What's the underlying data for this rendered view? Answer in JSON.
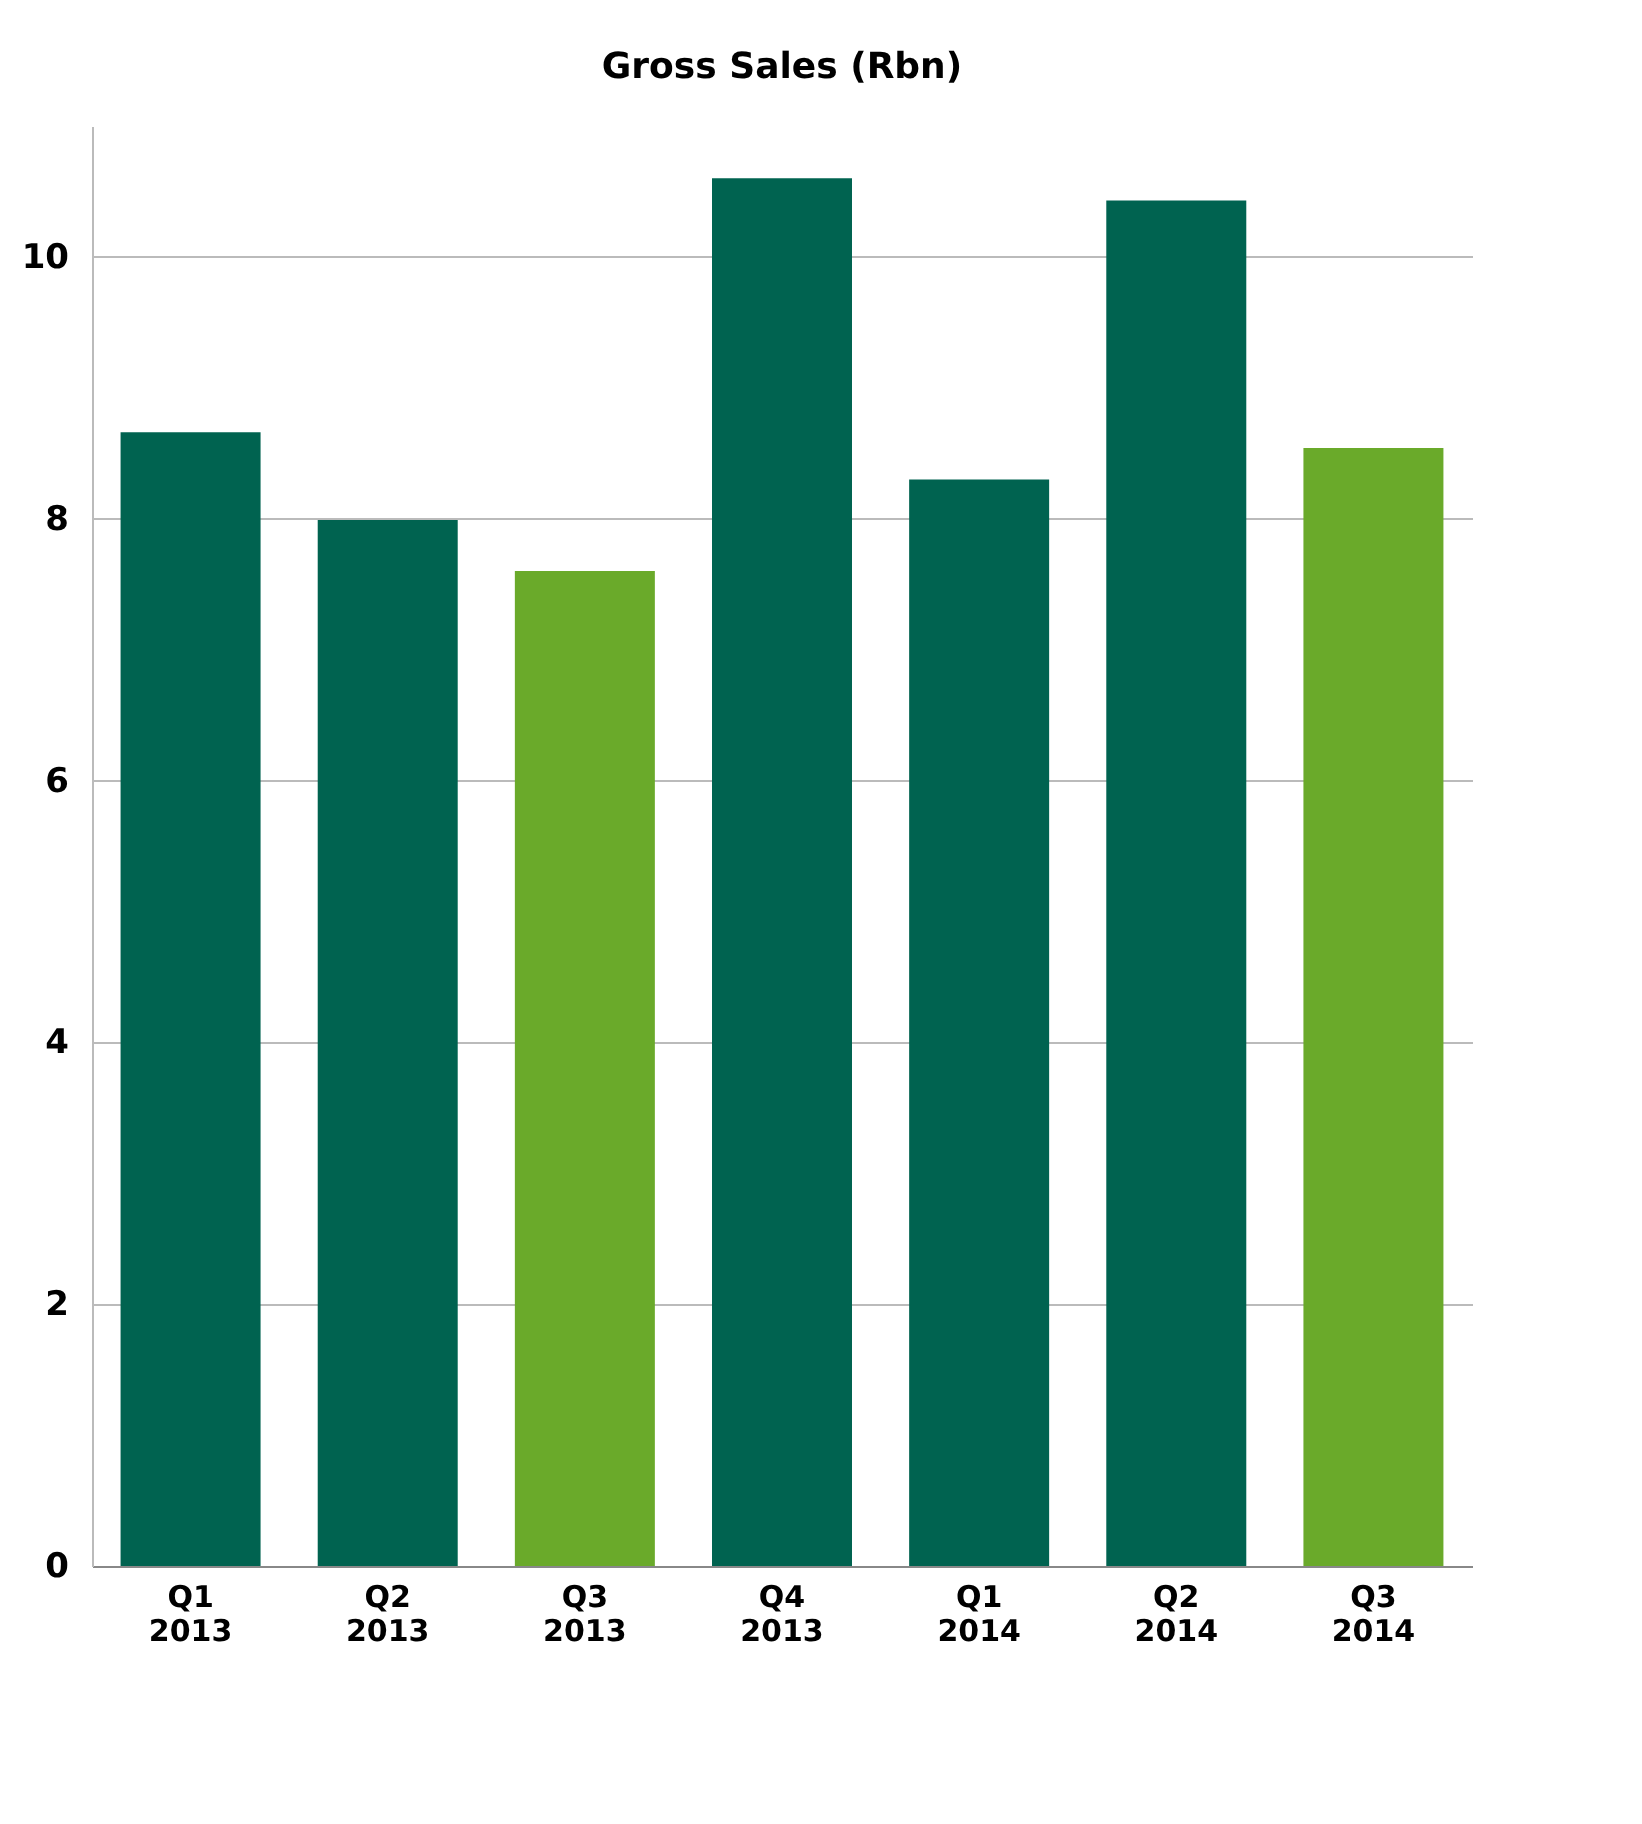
{
  "chart_data": {
    "type": "bar",
    "title": "Gross Sales (Rbn)",
    "categories": [
      "Q1 2013",
      "Q2 2013",
      "Q3 2013",
      "Q4 2013",
      "Q1 2014",
      "Q2 2014",
      "Q3 2014"
    ],
    "values": [
      8.66,
      7.99,
      7.6,
      10.6,
      8.3,
      10.43,
      8.54
    ],
    "colors": [
      "#006350",
      "#006350",
      "#6aaa2a",
      "#006350",
      "#006350",
      "#006350",
      "#6aaa2a"
    ],
    "ylim": [
      0,
      11
    ],
    "yticks": [
      0,
      2,
      4,
      6,
      8,
      10
    ],
    "grid": "y"
  }
}
